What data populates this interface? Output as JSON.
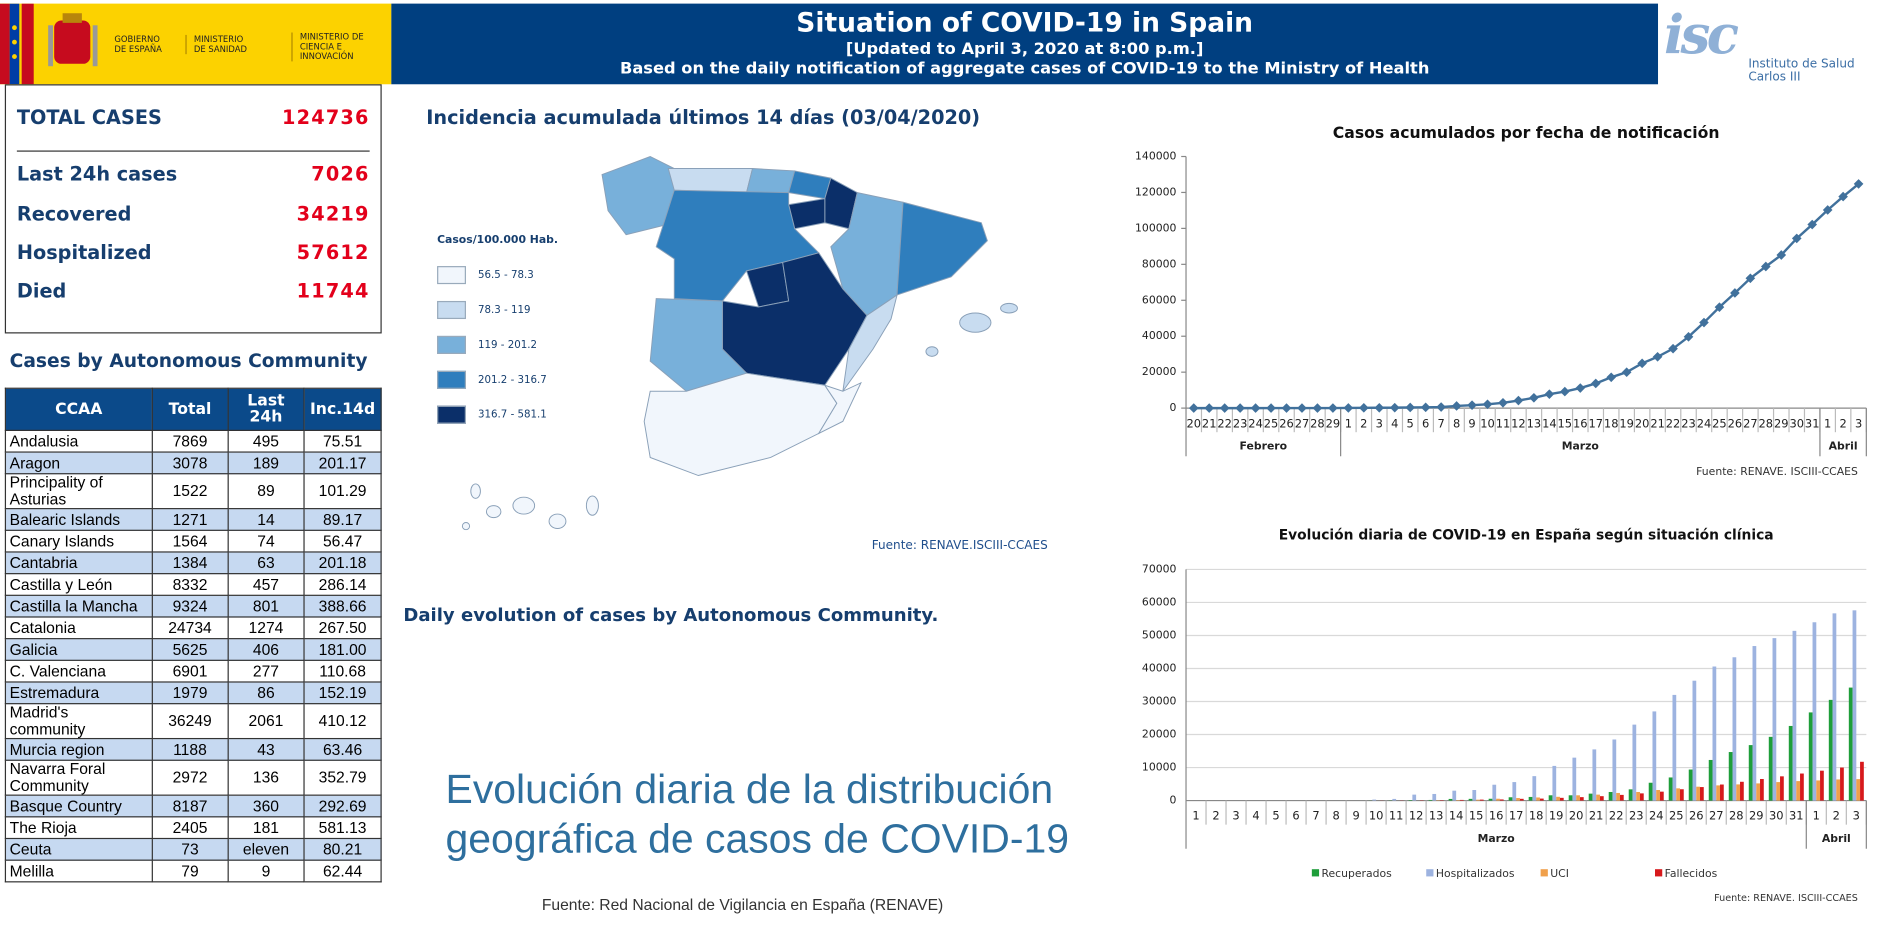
{
  "header": {
    "logos": [
      "GOBIERNO DE ESPAÑA",
      "MINISTERIO DE SANIDAD",
      "MINISTERIO DE CIENCIA E INNOVACIÓN"
    ],
    "title": "Situation of COVID-19 in Spain",
    "updated": "[Updated to April 3, 2020 at 8:00 p.m.]",
    "subtitle": "Based on the daily notification of aggregate cases of COVID-19 to the Ministry of Health",
    "institute_logo": "isc",
    "institute": "Instituto de Salud Carlos III"
  },
  "summary": [
    {
      "label": "TOTAL CASES",
      "value": 124736
    },
    {
      "label": "Last 24h cases",
      "value": 7026
    },
    {
      "label": "Recovered",
      "value": 34219
    },
    {
      "label": "Hospitalized",
      "value": 57612
    },
    {
      "label": "Died",
      "value": 11744
    }
  ],
  "table": {
    "title": "Cases by Autonomous Community",
    "columns": [
      "CCAA",
      "Total",
      "Last 24h",
      "Inc.14d"
    ],
    "rows": [
      [
        "Andalusia",
        7869,
        495,
        75.51
      ],
      [
        "Aragon",
        3078,
        189,
        201.17
      ],
      [
        "Principality of Asturias",
        1522,
        89,
        101.29
      ],
      [
        "Balearic Islands",
        1271,
        14,
        89.17
      ],
      [
        "Canary Islands",
        1564,
        74,
        56.47
      ],
      [
        "Cantabria",
        1384,
        63,
        201.18
      ],
      [
        "Castilla y León",
        8332,
        457,
        286.14
      ],
      [
        "Castilla la Mancha",
        9324,
        801,
        388.66
      ],
      [
        "Catalonia",
        24734,
        1274,
        "267.50"
      ],
      [
        "Galicia",
        5625,
        406,
        "181.00"
      ],
      [
        "C. Valenciana",
        6901,
        277,
        110.68
      ],
      [
        "Estremadura",
        1979,
        86,
        152.19
      ],
      [
        "Madrid's community",
        36249,
        2061,
        410.12
      ],
      [
        "Murcia region",
        1188,
        43,
        63.46
      ],
      [
        "Navarra Foral Community",
        2972,
        136,
        352.79
      ],
      [
        "Basque Country",
        8187,
        360,
        292.69
      ],
      [
        "The Rioja",
        2405,
        181,
        581.13
      ],
      [
        "Ceuta",
        73,
        "eleven",
        80.21
      ],
      [
        "Melilla",
        79,
        9,
        62.44
      ]
    ]
  },
  "map": {
    "title": "Incidencia acumulada últimos 14 días (03/04/2020)",
    "legend_title": "Casos/100.000 Hab.",
    "legend": [
      {
        "label": "56.5 - 78.3",
        "color": "#f1f6fc"
      },
      {
        "label": "78.3 - 119",
        "color": "#c8dcf0"
      },
      {
        "label": "119 - 201.2",
        "color": "#78b0da"
      },
      {
        "label": "201.2 - 316.7",
        "color": "#2f7ebd"
      },
      {
        "label": "316.7 - 581.1",
        "color": "#0b2f69"
      }
    ],
    "source": "Fuente: RENAVE.ISCIII-CCAES"
  },
  "evolution": {
    "title": "Daily evolution of cases by Autonomous Community.",
    "heading": "Evolución diaria de la distribución geográfica de casos de COVID-19",
    "source": "Fuente: Red Nacional de Vigilancia en España (RENAVE)"
  },
  "chart_data": [
    {
      "type": "line",
      "title": "Casos acumulados por fecha de notificación",
      "categories": [
        20,
        21,
        22,
        23,
        24,
        25,
        26,
        27,
        28,
        29,
        1,
        2,
        3,
        4,
        5,
        6,
        7,
        8,
        9,
        10,
        11,
        12,
        13,
        14,
        15,
        16,
        17,
        18,
        19,
        20,
        21,
        22,
        23,
        24,
        25,
        26,
        27,
        28,
        29,
        30,
        31,
        1,
        2,
        3
      ],
      "groups": [
        "Febrero",
        "Marzo",
        "Abril"
      ],
      "values": [
        0,
        0,
        0,
        0,
        0,
        2,
        4,
        12,
        25,
        45,
        114,
        151,
        198,
        257,
        374,
        430,
        589,
        1204,
        1639,
        2140,
        2965,
        4209,
        5753,
        7753,
        9191,
        11178,
        13716,
        17147,
        19980,
        24926,
        28572,
        33089,
        39673,
        47610,
        56188,
        64059,
        72248,
        78797,
        85195,
        94417,
        102136,
        110238,
        117710,
        124736
      ],
      "color": "#41719c",
      "ylim": [
        0,
        140000
      ],
      "yticks": [
        0,
        20000,
        40000,
        60000,
        80000,
        100000,
        120000,
        140000
      ],
      "grid": false,
      "source": "Fuente: RENAVE. ISCIII-CCAES"
    },
    {
      "type": "bar",
      "title": "Evolución diaria de COVID-19 en España según situación clínica",
      "categories": [
        1,
        2,
        3,
        4,
        5,
        6,
        7,
        8,
        9,
        10,
        11,
        12,
        13,
        14,
        15,
        16,
        17,
        18,
        19,
        20,
        21,
        22,
        23,
        24,
        25,
        26,
        27,
        28,
        29,
        30,
        31,
        1,
        2,
        3
      ],
      "groups": [
        "Marzo",
        "Abril"
      ],
      "series": [
        {
          "name": "Recuperados",
          "color": "#1e9e3a",
          "values": [
            0,
            0,
            0,
            0,
            0,
            0,
            0,
            0,
            0,
            30,
            60,
            150,
            190,
            500,
            520,
            550,
            1000,
            1100,
            1600,
            1600,
            2100,
            2600,
            3400,
            5400,
            7000,
            9400,
            12300,
            14700,
            16800,
            19300,
            22600,
            26700,
            30500,
            34219
          ]
        },
        {
          "name": "Hospitalizados",
          "color": "#9db3e0",
          "values": [
            0,
            0,
            0,
            0,
            0,
            0,
            0,
            0,
            0,
            300,
            500,
            1800,
            2000,
            3000,
            3200,
            4800,
            5600,
            7400,
            10500,
            13000,
            15500,
            18500,
            23000,
            27000,
            32000,
            36300,
            40600,
            43400,
            46800,
            49200,
            51400,
            54000,
            56700,
            57612
          ]
        },
        {
          "name": "UCI",
          "color": "#f0a04b",
          "values": [
            0,
            0,
            0,
            0,
            0,
            0,
            0,
            0,
            0,
            0,
            0,
            0,
            100,
            150,
            270,
            560,
            770,
            940,
            1140,
            1600,
            1800,
            2300,
            2600,
            3200,
            3700,
            4200,
            4600,
            4900,
            5200,
            5600,
            5900,
            6100,
            6400,
            6500
          ]
        },
        {
          "name": "Fallecidos",
          "color": "#d7191c",
          "values": [
            0,
            0,
            0,
            0,
            0,
            0,
            0,
            0,
            0,
            35,
            50,
            85,
            120,
            200,
            290,
            340,
            530,
            600,
            830,
            1040,
            1330,
            1720,
            2180,
            2700,
            3430,
            4090,
            4860,
            5690,
            6530,
            7340,
            8190,
            9050,
            10000,
            11744
          ]
        }
      ],
      "ylim": [
        0,
        70000
      ],
      "yticks": [
        0,
        10000,
        20000,
        30000,
        40000,
        50000,
        60000,
        70000
      ],
      "grid": true,
      "legend": "bottom",
      "source": "Fuente: RENAVE. ISCIII-CCAES"
    }
  ]
}
